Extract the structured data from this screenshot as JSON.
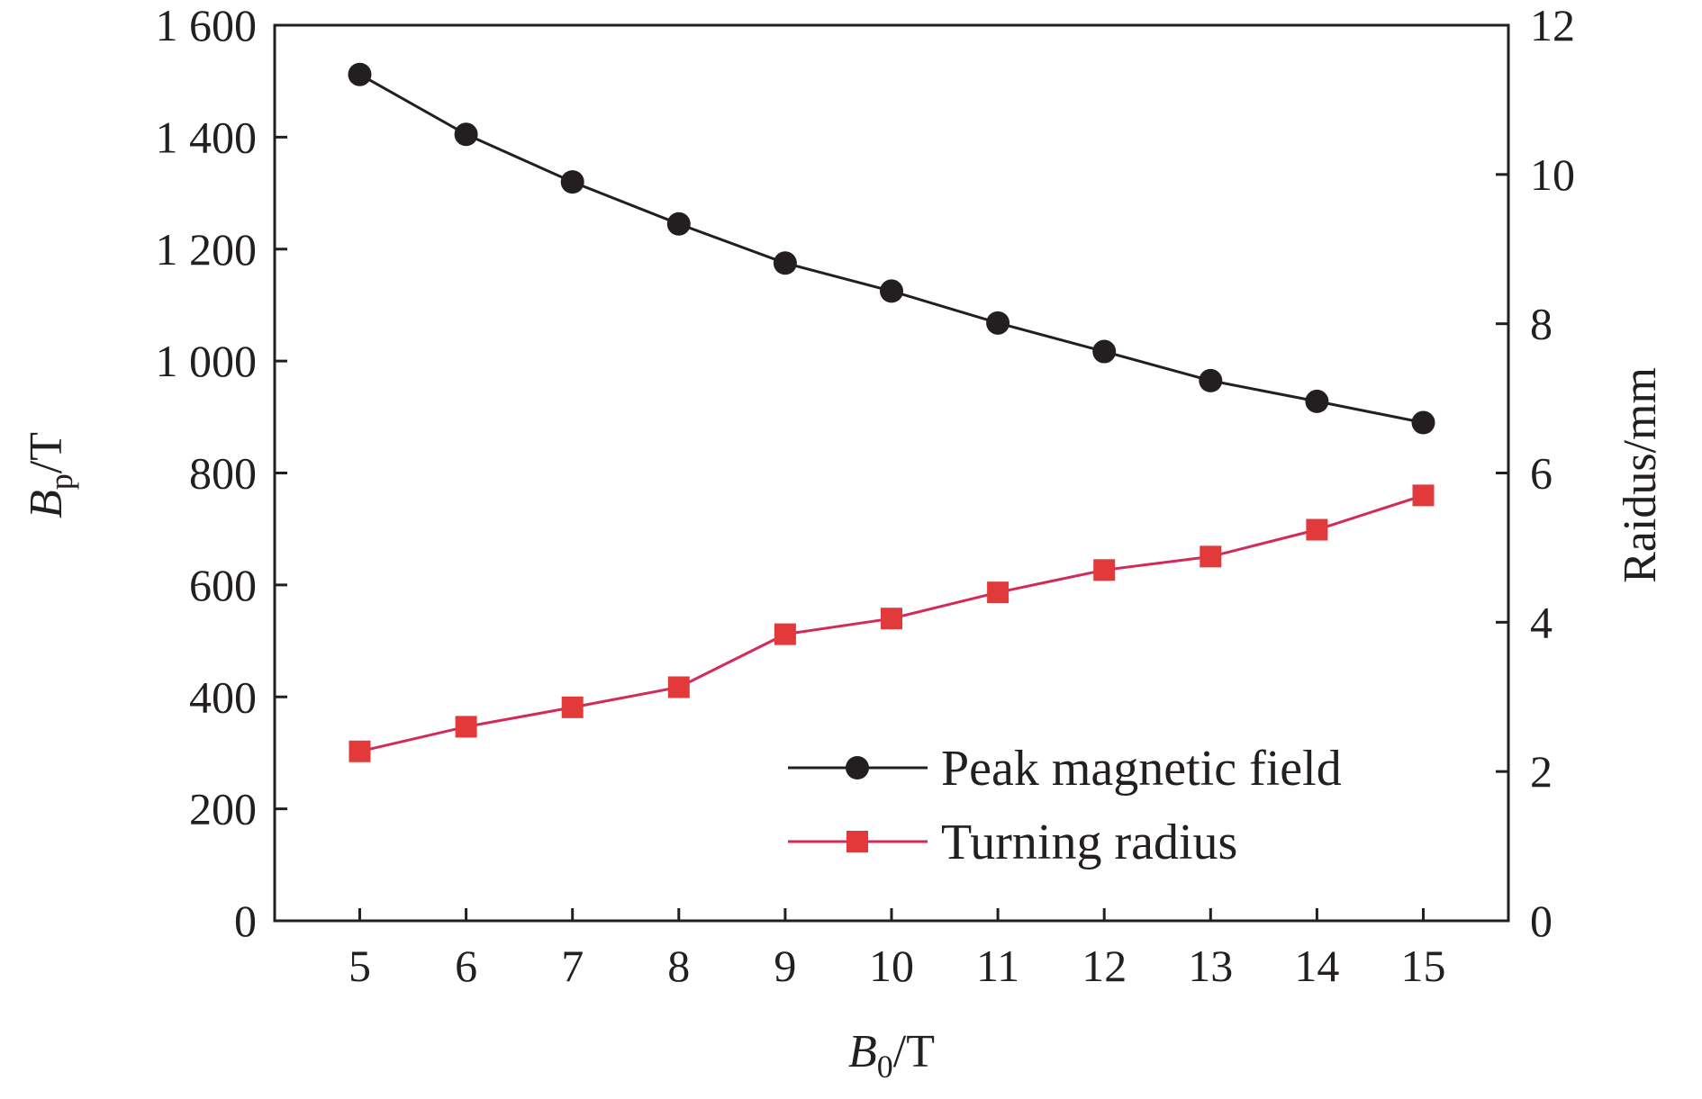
{
  "chart_data": {
    "type": "line",
    "x": [
      5,
      6,
      7,
      8,
      9,
      10,
      11,
      12,
      13,
      14,
      15
    ],
    "x_ticks": [
      "5",
      "6",
      "7",
      "8",
      "9",
      "10",
      "11",
      "12",
      "13",
      "14",
      "15"
    ],
    "xlim": [
      4.2,
      15.8
    ],
    "xlabel": {
      "main": "B",
      "sub": "0",
      "unit": "/T"
    },
    "ylabel_left": {
      "main": "B",
      "sub": "p",
      "unit": "/T"
    },
    "ylabel_right": "Raidus/mm",
    "ylim_left": [
      0,
      1600
    ],
    "ylim_right": [
      0,
      12
    ],
    "yticks_left": [
      "0",
      "200",
      "400",
      "600",
      "800",
      "1 000",
      "1 200",
      "1 400",
      "1 600"
    ],
    "yticks_right": [
      "0",
      "2",
      "4",
      "6",
      "8",
      "10",
      "12"
    ],
    "legend_position": "lower-right",
    "series": [
      {
        "name": "Peak magnetic field",
        "axis": "left",
        "marker": "circle",
        "color": "#231f20",
        "values": [
          1512,
          1405,
          1320,
          1245,
          1175,
          1125,
          1068,
          1017,
          965,
          928,
          890
        ]
      },
      {
        "name": "Turning radius",
        "axis": "right",
        "marker": "square",
        "color": "#e23a3a",
        "line_color": "#d42a5a",
        "values": [
          2.27,
          2.6,
          2.86,
          3.13,
          3.84,
          4.05,
          4.4,
          4.7,
          4.88,
          5.24,
          5.7
        ]
      }
    ]
  }
}
